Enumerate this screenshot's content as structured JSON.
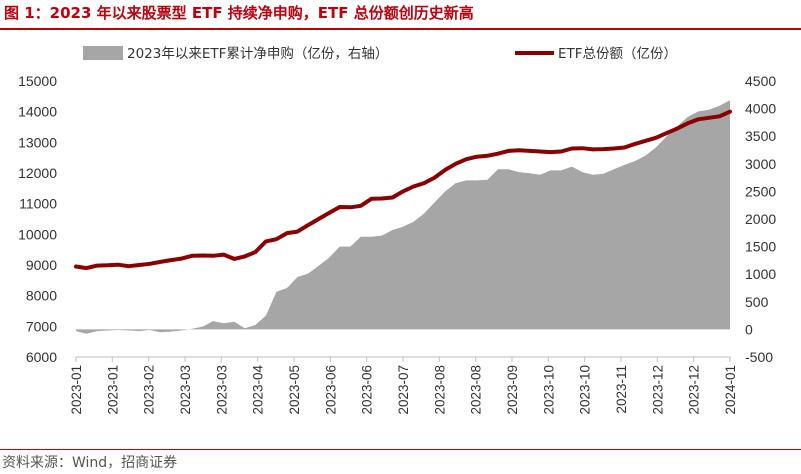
{
  "title": "图 1：2023 年以来股票型 ETF 持续净申购，ETF 总份额创历史新高",
  "source": "资料来源：Wind，招商证券",
  "colors": {
    "title": "#c0000c",
    "area": "#a6a6a6",
    "line": "#8b0000"
  },
  "chart_data": {
    "type": "area+line",
    "legend_position": "top",
    "grid": false,
    "x_tick_labels": [
      "2023-01",
      "2023-01",
      "2023-02",
      "2023-03",
      "2023-03",
      "2023-04",
      "2023-05",
      "2023-06",
      "2023-06",
      "2023-07",
      "2023-08",
      "2023-08",
      "2023-09",
      "2023-10",
      "2023-10",
      "2023-11",
      "2023-12",
      "2023-12",
      "2024-01"
    ],
    "left_axis": {
      "ylim": [
        6000,
        15000
      ],
      "ticks": [
        6000,
        7000,
        8000,
        9000,
        10000,
        11000,
        12000,
        13000,
        14000,
        15000
      ]
    },
    "right_axis": {
      "ylim": [
        -500,
        4500
      ],
      "ticks": [
        -500,
        0,
        500,
        1000,
        1500,
        2000,
        2500,
        3000,
        3500,
        4000,
        4500
      ]
    },
    "series": [
      {
        "name": "2023年以来ETF累计净申购（亿份，右轴）",
        "type": "area",
        "axis": "right",
        "values": [
          -30,
          -80,
          -30,
          -20,
          -10,
          -20,
          -30,
          -10,
          -50,
          -40,
          -20,
          10,
          50,
          150,
          110,
          140,
          20,
          80,
          250,
          680,
          750,
          950,
          1010,
          1150,
          1300,
          1500,
          1500,
          1680,
          1680,
          1700,
          1800,
          1860,
          1950,
          2100,
          2300,
          2500,
          2650,
          2700,
          2700,
          2710,
          2900,
          2900,
          2850,
          2830,
          2800,
          2880,
          2880,
          2950,
          2850,
          2800,
          2820,
          2900,
          2980,
          3050,
          3150,
          3300,
          3500,
          3680,
          3850,
          3950,
          3980,
          4050,
          4150
        ]
      },
      {
        "name": "ETF总份额（亿份）",
        "type": "line",
        "axis": "left",
        "values": [
          8950,
          8900,
          8980,
          8990,
          9010,
          8960,
          9000,
          9040,
          9100,
          9160,
          9210,
          9300,
          9310,
          9300,
          9340,
          9200,
          9280,
          9420,
          9770,
          9840,
          10040,
          10090,
          10300,
          10500,
          10700,
          10890,
          10880,
          10930,
          11160,
          11170,
          11200,
          11400,
          11560,
          11670,
          11850,
          12100,
          12300,
          12450,
          12530,
          12560,
          12630,
          12720,
          12740,
          12720,
          12700,
          12680,
          12700,
          12800,
          12810,
          12770,
          12780,
          12800,
          12830,
          12950,
          13050,
          13150,
          13300,
          13450,
          13620,
          13750,
          13800,
          13850,
          14000
        ]
      }
    ]
  }
}
